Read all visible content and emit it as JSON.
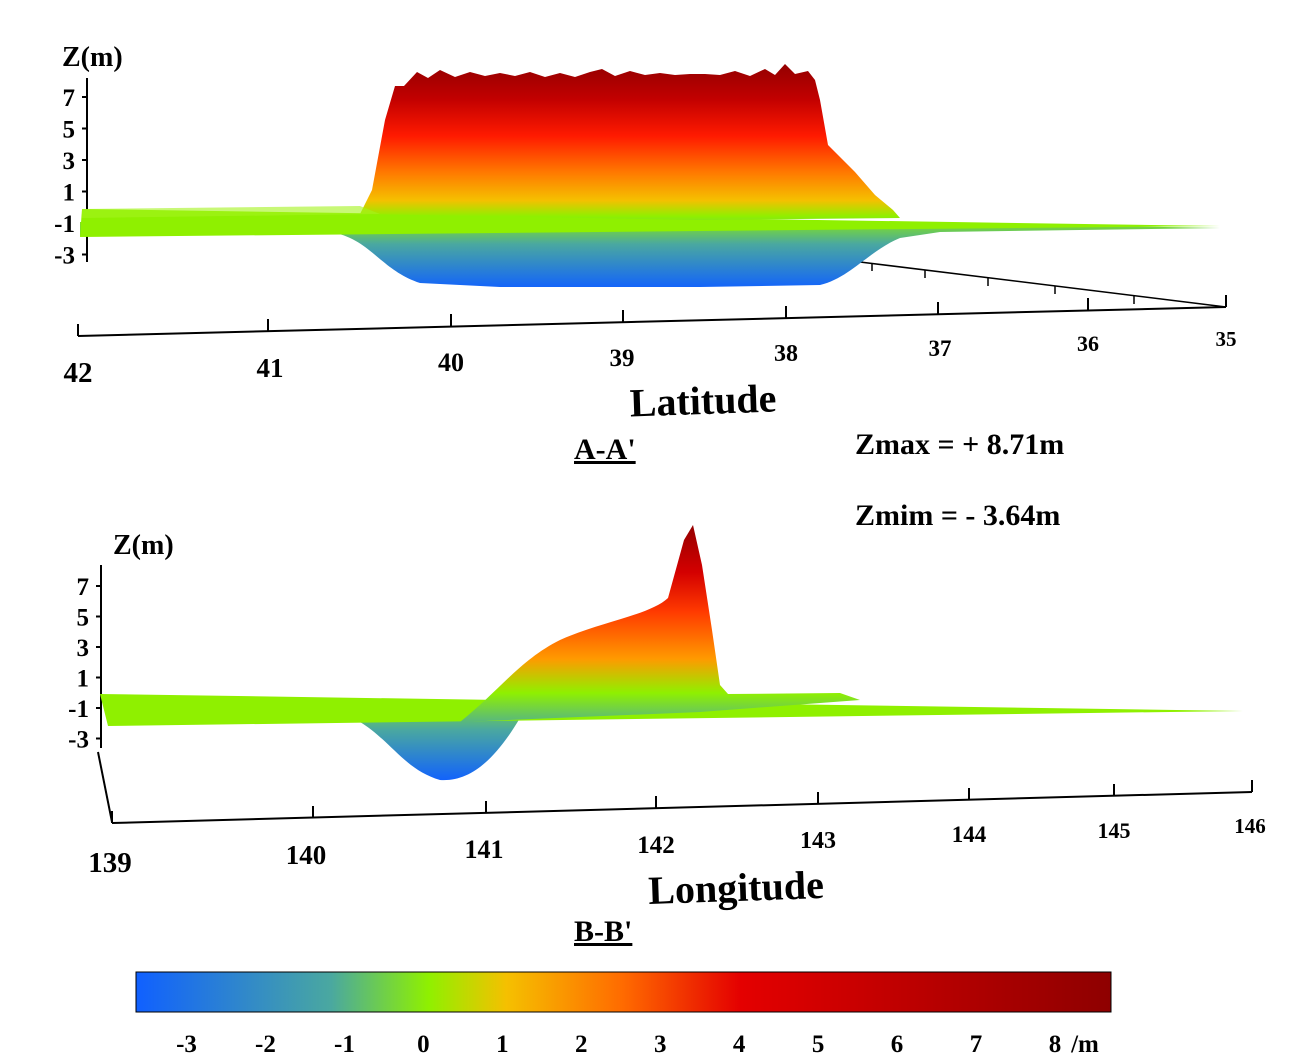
{
  "chart_data": [
    {
      "type": "area",
      "section_label": "A-A'",
      "ylabel": "Z(m)",
      "xlabel": "Latitude",
      "x_ticks": [
        "42",
        "41",
        "40",
        "39",
        "38",
        "37",
        "36",
        "35"
      ],
      "y_ticks": [
        "7",
        "5",
        "3",
        "1",
        "-1",
        "-3"
      ],
      "xlim": [
        42,
        35
      ],
      "ylim": [
        -3.64,
        8.71
      ],
      "series": [
        {
          "x": [
            42,
            40.5,
            40.3,
            40.1,
            39.5,
            38.5,
            38.0,
            37.8,
            37.5,
            37.3,
            36,
            35
          ],
          "y": [
            0,
            0,
            1.5,
            7.5,
            8.0,
            8.2,
            8.6,
            4.5,
            2.0,
            0,
            0,
            0
          ]
        },
        {
          "x": [
            42,
            40.5,
            40.0,
            39.5,
            38.5,
            38.0,
            37.6,
            37.2,
            36,
            35
          ],
          "y": [
            0,
            -0.5,
            -3.2,
            -3.6,
            -3.6,
            -3.4,
            -2.0,
            0,
            0,
            0
          ]
        }
      ]
    },
    {
      "type": "area",
      "section_label": "B-B'",
      "ylabel": "Z(m)",
      "xlabel": "Longitude",
      "x_ticks": [
        "139",
        "140",
        "141",
        "142",
        "143",
        "144",
        "145",
        "146"
      ],
      "y_ticks": [
        "7",
        "5",
        "3",
        "1",
        "-1",
        "-3"
      ],
      "xlim": [
        139,
        146
      ],
      "ylim": [
        -3.64,
        8.71
      ],
      "series": [
        {
          "x": [
            139,
            141.0,
            141.4,
            141.8,
            142.0,
            142.1,
            142.2,
            142.4,
            143,
            146
          ],
          "y": [
            0,
            0,
            2.5,
            4.0,
            5.5,
            8.0,
            8.71,
            0.2,
            0,
            0
          ]
        },
        {
          "x": [
            139,
            140.4,
            140.6,
            140.8,
            141.0,
            141.2,
            146
          ],
          "y": [
            0,
            -1.5,
            -3.3,
            -3.64,
            -2.5,
            0,
            0
          ]
        }
      ]
    }
  ],
  "stats": {
    "zmax": "Zmax = + 8.71m",
    "zmin": "Zmim = - 3.64m"
  },
  "colorbar": {
    "ticks": [
      "-3",
      "-2",
      "-1",
      "0",
      "1",
      "2",
      "3",
      "4",
      "5",
      "6",
      "7",
      "8"
    ],
    "unit": "/m",
    "range": [
      -3.64,
      8.71
    ],
    "colors": [
      "#1060ff",
      "#4aa8a0",
      "#8ff000",
      "#f5c000",
      "#ff6a00",
      "#e40000",
      "#8e0000"
    ]
  }
}
